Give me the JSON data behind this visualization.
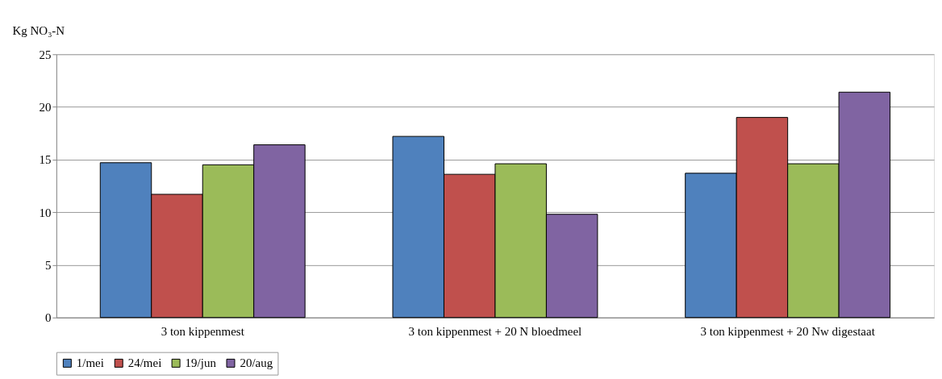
{
  "chart_data": {
    "type": "bar",
    "ylabel": "Kg NO₃-N",
    "categories": [
      "3 ton kippenmest",
      "3 ton kippenmest + 20 N bloedmeel",
      "3 ton kippenmest  + 20 Nw digestaat"
    ],
    "series": [
      {
        "name": "1/mei",
        "color": "#4f81bd",
        "values": [
          14.7,
          17.2,
          13.7
        ]
      },
      {
        "name": "24/mei",
        "color": "#c0504d",
        "values": [
          11.7,
          13.6,
          19.0
        ]
      },
      {
        "name": "19/jun",
        "color": "#9bbb59",
        "values": [
          14.5,
          14.6,
          14.6
        ]
      },
      {
        "name": "20/aug",
        "color": "#8064a2",
        "values": [
          16.4,
          9.8,
          21.4
        ]
      }
    ],
    "ylim": [
      0,
      25
    ],
    "yticks": [
      0,
      5,
      10,
      15,
      20,
      25
    ],
    "grid": "y",
    "legend": "bottom"
  }
}
